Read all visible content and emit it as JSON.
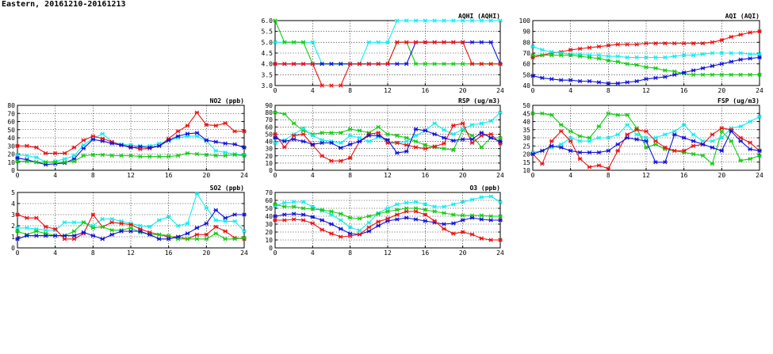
{
  "header": {
    "title": "Eastern, 20161210-20161213"
  },
  "colors": {
    "red": "#ee1111",
    "blue": "#1111dd",
    "green": "#11cc11",
    "cyan": "#11eeee"
  },
  "chart_data": [
    {
      "type": "line",
      "title": "AQHI (AQHI)",
      "xlim": [
        0,
        24
      ],
      "ylim": [
        3.0,
        6.0
      ],
      "xticks": [
        "0",
        "4",
        "8",
        "12",
        "16",
        "20",
        "24"
      ],
      "yticks": [
        "3.0",
        "3.5",
        "4.0",
        "4.5",
        "5.0",
        "5.5",
        "6.0"
      ],
      "grid": true,
      "x": [
        0,
        1,
        2,
        3,
        4,
        5,
        6,
        7,
        8,
        9,
        10,
        11,
        12,
        13,
        14,
        15,
        16,
        17,
        18,
        19,
        20,
        21,
        22,
        23,
        24
      ],
      "series": [
        {
          "color": "cyan",
          "values": [
            5,
            5,
            5,
            5,
            5,
            4,
            4,
            4,
            4,
            4,
            5,
            5,
            5,
            6,
            6,
            6,
            6,
            6,
            6,
            6,
            6,
            6,
            6,
            6,
            6
          ]
        },
        {
          "color": "green",
          "values": [
            6,
            5,
            5,
            5,
            4,
            4,
            4,
            4,
            4,
            4,
            4,
            4,
            4,
            5,
            5,
            4,
            4,
            4,
            4,
            4,
            4,
            4,
            4,
            4,
            4
          ]
        },
        {
          "color": "blue",
          "values": [
            4,
            4,
            4,
            4,
            4,
            4,
            4,
            4,
            4,
            4,
            4,
            4,
            4,
            4,
            4,
            5,
            5,
            5,
            5,
            5,
            5,
            5,
            5,
            5,
            4
          ]
        },
        {
          "color": "red",
          "values": [
            4,
            4,
            4,
            4,
            4,
            3,
            3,
            3,
            4,
            4,
            4,
            4,
            4,
            5,
            5,
            5,
            5,
            5,
            5,
            5,
            5,
            4,
            4,
            4,
            4
          ]
        }
      ]
    },
    {
      "type": "line",
      "title": "AQI (AQI)",
      "xlim": [
        0,
        24
      ],
      "ylim": [
        40,
        100
      ],
      "xticks": [
        "0",
        "4",
        "8",
        "12",
        "16",
        "20",
        "24"
      ],
      "yticks": [
        "40",
        "50",
        "60",
        "70",
        "80",
        "90",
        "100"
      ],
      "grid": true,
      "x": [
        0,
        1,
        2,
        3,
        4,
        5,
        6,
        7,
        8,
        9,
        10,
        11,
        12,
        13,
        14,
        15,
        16,
        17,
        18,
        19,
        20,
        21,
        22,
        23,
        24
      ],
      "series": [
        {
          "color": "red",
          "values": [
            66,
            68,
            70,
            71,
            73,
            74,
            75,
            76,
            77,
            78,
            78,
            78,
            79,
            79,
            79,
            79,
            79,
            79,
            79,
            80,
            82,
            85,
            87,
            89,
            90
          ]
        },
        {
          "color": "cyan",
          "values": [
            76,
            73,
            71,
            70,
            69,
            69,
            68,
            68,
            67,
            67,
            66,
            66,
            66,
            66,
            66,
            67,
            68,
            68,
            69,
            70,
            70,
            70,
            70,
            69,
            69
          ]
        },
        {
          "color": "green",
          "values": [
            68,
            68,
            68,
            68,
            68,
            67,
            66,
            65,
            63,
            62,
            60,
            59,
            57,
            56,
            54,
            53,
            51,
            50,
            50,
            50,
            50,
            50,
            50,
            50,
            50
          ]
        },
        {
          "color": "blue",
          "values": [
            49,
            47,
            46,
            45,
            45,
            44,
            44,
            43,
            42,
            42,
            43,
            44,
            46,
            47,
            48,
            50,
            52,
            54,
            56,
            58,
            60,
            62,
            64,
            65,
            66
          ]
        }
      ]
    },
    {
      "type": "line",
      "title": "NO2 (ppb)",
      "xlim": [
        0,
        24
      ],
      "ylim": [
        0,
        80
      ],
      "xticks": [
        "0",
        "4",
        "8",
        "12",
        "16",
        "20",
        "24"
      ],
      "yticks": [
        "0",
        "10",
        "20",
        "30",
        "40",
        "50",
        "60",
        "70",
        "80"
      ],
      "grid": true,
      "x": [
        0,
        1,
        2,
        3,
        4,
        5,
        6,
        7,
        8,
        9,
        10,
        11,
        12,
        13,
        14,
        15,
        16,
        17,
        18,
        19,
        20,
        21,
        22,
        23,
        24
      ],
      "series": [
        {
          "color": "cyan",
          "values": [
            19,
            18,
            16,
            10,
            11,
            14,
            18,
            31,
            39,
            45,
            35,
            32,
            31,
            30,
            30,
            33,
            36,
            40,
            42,
            42,
            36,
            24,
            22,
            20,
            19
          ]
        },
        {
          "color": "red",
          "values": [
            30,
            30,
            28,
            21,
            21,
            21,
            28,
            37,
            42,
            39,
            35,
            31,
            29,
            26,
            27,
            30,
            39,
            48,
            55,
            71,
            56,
            55,
            58,
            48,
            48
          ]
        },
        {
          "color": "blue",
          "values": [
            15,
            13,
            10,
            7,
            8,
            9,
            14,
            27,
            38,
            36,
            33,
            31,
            28,
            29,
            28,
            30,
            37,
            42,
            45,
            46,
            37,
            35,
            33,
            32,
            28
          ]
        },
        {
          "color": "green",
          "values": [
            11,
            11,
            10,
            10,
            10,
            10,
            11,
            18,
            19,
            19,
            18,
            18,
            18,
            17,
            17,
            17,
            17,
            18,
            21,
            20,
            19,
            18,
            18,
            19,
            18
          ]
        }
      ]
    },
    {
      "type": "line",
      "title": "RSP (ug/m3)",
      "xlim": [
        0,
        24
      ],
      "ylim": [
        0,
        90
      ],
      "xticks": [
        "0",
        "4",
        "8",
        "12",
        "16",
        "20",
        "24"
      ],
      "yticks": [
        "0",
        "10",
        "20",
        "30",
        "40",
        "50",
        "60",
        "70",
        "80",
        "90"
      ],
      "grid": true,
      "x": [
        0,
        1,
        2,
        3,
        4,
        5,
        6,
        7,
        8,
        9,
        10,
        11,
        12,
        13,
        14,
        15,
        16,
        17,
        18,
        19,
        20,
        21,
        22,
        23,
        24
      ],
      "series": [
        {
          "color": "green",
          "values": [
            80,
            78,
            65,
            55,
            50,
            52,
            52,
            52,
            57,
            55,
            52,
            60,
            50,
            48,
            45,
            40,
            35,
            32,
            30,
            28,
            56,
            48,
            32,
            45,
            45
          ]
        },
        {
          "color": "cyan",
          "values": [
            38,
            42,
            50,
            58,
            48,
            42,
            40,
            38,
            48,
            45,
            40,
            46,
            40,
            38,
            40,
            48,
            55,
            65,
            56,
            50,
            57,
            63,
            65,
            68,
            80
          ]
        },
        {
          "color": "red",
          "values": [
            50,
            32,
            48,
            50,
            35,
            20,
            13,
            13,
            17,
            40,
            50,
            52,
            38,
            38,
            35,
            32,
            30,
            33,
            37,
            62,
            65,
            38,
            48,
            50,
            37
          ]
        },
        {
          "color": "blue",
          "values": [
            45,
            40,
            43,
            40,
            36,
            38,
            38,
            31,
            36,
            40,
            48,
            48,
            42,
            24,
            26,
            57,
            55,
            50,
            45,
            41,
            43,
            43,
            52,
            45,
            40
          ]
        }
      ]
    },
    {
      "type": "line",
      "title": "FSP (ug/m3)",
      "xlim": [
        0,
        24
      ],
      "ylim": [
        10,
        50
      ],
      "xticks": [
        "0",
        "4",
        "8",
        "12",
        "16",
        "20",
        "24"
      ],
      "yticks": [
        "10",
        "15",
        "20",
        "25",
        "30",
        "35",
        "40",
        "45",
        "50"
      ],
      "grid": true,
      "x": [
        0,
        1,
        2,
        3,
        4,
        5,
        6,
        7,
        8,
        9,
        10,
        11,
        12,
        13,
        14,
        15,
        16,
        17,
        18,
        19,
        20,
        21,
        22,
        23,
        24
      ],
      "series": [
        {
          "color": "green",
          "values": [
            45,
            45,
            44,
            38,
            34,
            31,
            30,
            37,
            45,
            44,
            44,
            36,
            24,
            26,
            23,
            22,
            21,
            20,
            19,
            14,
            34,
            28,
            16,
            17,
            19
          ]
        },
        {
          "color": "cyan",
          "values": [
            21,
            22,
            24,
            26,
            30,
            28,
            28,
            30,
            30,
            32,
            38,
            32,
            30,
            30,
            32,
            34,
            38,
            32,
            28,
            28,
            30,
            36,
            37,
            40,
            43
          ]
        },
        {
          "color": "red",
          "values": [
            20,
            14,
            28,
            34,
            28,
            17,
            12,
            13,
            11,
            22,
            32,
            35,
            34,
            28,
            24,
            22,
            22,
            25,
            26,
            32,
            36,
            35,
            30,
            27,
            22
          ]
        },
        {
          "color": "blue",
          "values": [
            20,
            22,
            25,
            24,
            22,
            21,
            21,
            21,
            22,
            26,
            30,
            29,
            28,
            15,
            15,
            32,
            30,
            28,
            26,
            24,
            22,
            34,
            28,
            23,
            22
          ]
        }
      ]
    },
    {
      "type": "line",
      "title": "SO2 (ppb)",
      "xlim": [
        0,
        24
      ],
      "ylim": [
        0,
        5
      ],
      "xticks": [
        "0",
        "4",
        "8",
        "12",
        "16",
        "20",
        "24"
      ],
      "yticks": [
        "0",
        "1",
        "2",
        "3",
        "4",
        "5"
      ],
      "grid": true,
      "x": [
        0,
        1,
        2,
        3,
        4,
        5,
        6,
        7,
        8,
        9,
        10,
        11,
        12,
        13,
        14,
        15,
        16,
        17,
        18,
        19,
        20,
        21,
        22,
        23,
        24
      ],
      "series": [
        {
          "color": "cyan",
          "values": [
            1.8,
            1.8,
            1.7,
            1.6,
            1.6,
            2.3,
            2.3,
            2.3,
            2.0,
            2.6,
            2.6,
            2.4,
            2.2,
            2.0,
            1.9,
            2.5,
            2.8,
            2.0,
            2.2,
            4.9,
            3.6,
            2.5,
            2.4,
            2.4,
            1.5
          ]
        },
        {
          "color": "red",
          "values": [
            3.0,
            2.7,
            2.7,
            1.9,
            1.7,
            0.8,
            0.8,
            1.3,
            3.0,
            1.9,
            2.3,
            2.2,
            2.1,
            1.7,
            1.4,
            1.2,
            1.0,
            1.0,
            0.8,
            1.2,
            1.2,
            1.9,
            1.5,
            0.9,
            0.8
          ]
        },
        {
          "color": "green",
          "values": [
            1.5,
            1.2,
            1.5,
            1.3,
            1.1,
            1.1,
            1.5,
            2.3,
            1.8,
            1.9,
            1.6,
            1.6,
            1.8,
            1.4,
            1.2,
            1.2,
            1.1,
            0.8,
            0.8,
            0.8,
            0.8,
            1.3,
            0.8,
            0.8,
            0.9
          ]
        },
        {
          "color": "blue",
          "values": [
            0.8,
            1.1,
            1.1,
            1.1,
            1.1,
            1.1,
            1.1,
            1.4,
            1.1,
            0.8,
            1.2,
            1.5,
            1.5,
            1.5,
            1.2,
            0.8,
            0.8,
            1.0,
            1.3,
            1.8,
            2.2,
            3.4,
            2.7,
            3.0,
            3.0
          ]
        }
      ]
    },
    {
      "type": "line",
      "title": "O3 (ppb)",
      "xlim": [
        0,
        24
      ],
      "ylim": [
        0,
        70
      ],
      "xticks": [
        "0",
        "4",
        "8",
        "12",
        "16",
        "20",
        "24"
      ],
      "yticks": [
        "0",
        "10",
        "20",
        "30",
        "40",
        "50",
        "60",
        "70"
      ],
      "grid": true,
      "x": [
        0,
        1,
        2,
        3,
        4,
        5,
        6,
        7,
        8,
        9,
        10,
        11,
        12,
        13,
        14,
        15,
        16,
        17,
        18,
        19,
        20,
        21,
        22,
        23,
        24
      ],
      "series": [
        {
          "color": "cyan",
          "values": [
            53,
            57,
            58,
            58,
            52,
            47,
            42,
            35,
            26,
            22,
            32,
            44,
            50,
            55,
            57,
            58,
            55,
            52,
            52,
            55,
            58,
            61,
            64,
            65,
            58
          ]
        },
        {
          "color": "green",
          "values": [
            55,
            52,
            52,
            50,
            49,
            48,
            46,
            43,
            38,
            37,
            40,
            43,
            46,
            48,
            50,
            50,
            48,
            46,
            44,
            42,
            41,
            41,
            41,
            40,
            40
          ]
        },
        {
          "color": "blue",
          "values": [
            40,
            42,
            43,
            42,
            39,
            35,
            30,
            24,
            18,
            17,
            21,
            28,
            34,
            36,
            38,
            36,
            34,
            32,
            30,
            31,
            35,
            38,
            36,
            35,
            35
          ]
        },
        {
          "color": "red",
          "values": [
            35,
            35,
            36,
            35,
            31,
            23,
            18,
            14,
            15,
            17,
            26,
            33,
            37,
            42,
            46,
            46,
            42,
            34,
            24,
            18,
            20,
            17,
            12,
            10,
            10
          ]
        }
      ]
    }
  ]
}
